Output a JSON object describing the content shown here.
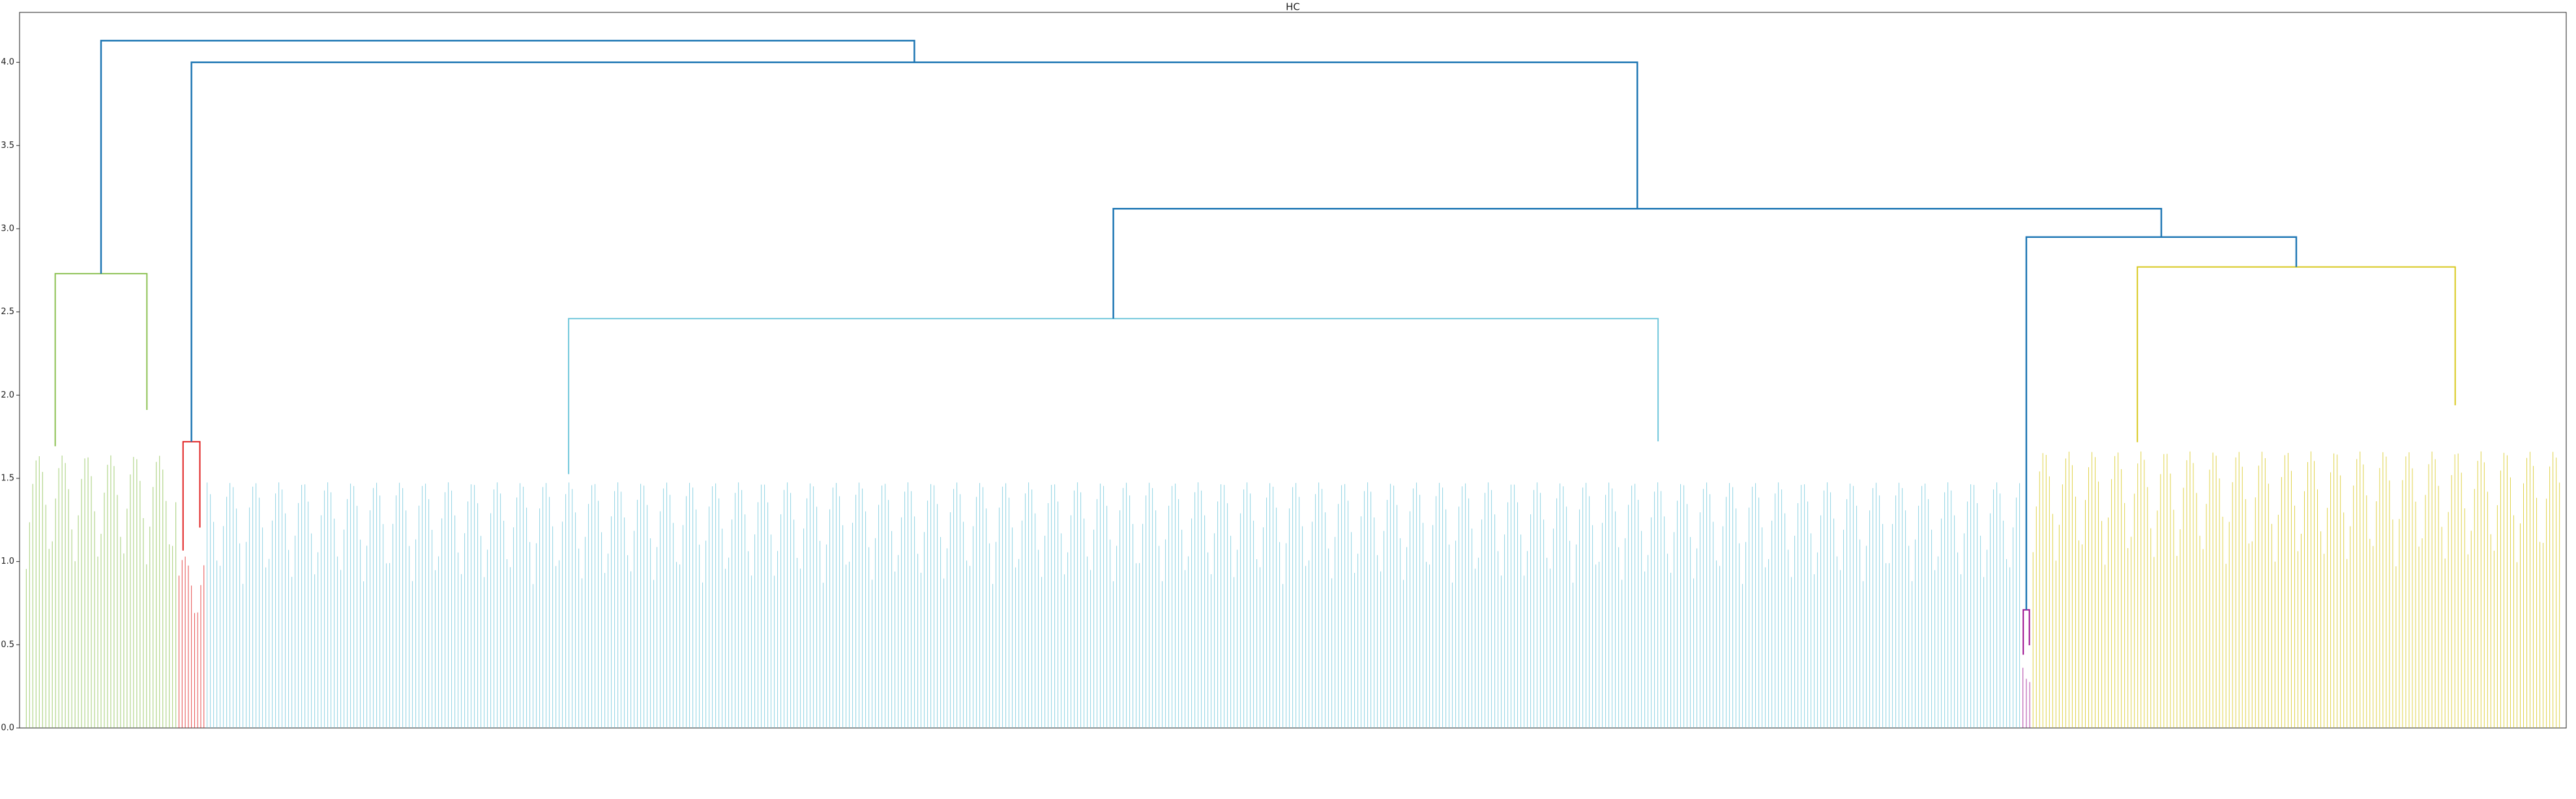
{
  "chart_data": {
    "type": "dendrogram",
    "title": "HC",
    "ylim": [
      0,
      4.3
    ],
    "yticks": [
      {
        "value": 0,
        "label": "0.0"
      },
      0.5,
      {
        "value": 1,
        "label": "1.0"
      },
      1.5,
      {
        "value": 2,
        "label": "2.0"
      },
      2.5,
      {
        "value": 3,
        "label": "3.0"
      },
      3.5,
      {
        "value": 4,
        "label": "4.0"
      }
    ],
    "clusters": [
      {
        "color": "#8cc152",
        "height": 2.73
      },
      {
        "color": "#e02020",
        "height": 1.72
      },
      {
        "color": "#72c8dc",
        "height": 2.46
      },
      {
        "color": "#9b0e8e",
        "height": 0.71
      },
      {
        "color": "#d8c81c",
        "height": 2.77
      }
    ],
    "link_color": "#1f77b4",
    "links": [
      {
        "height": 4.13
      },
      {
        "height": 4.0
      },
      {
        "height": 3.12
      },
      {
        "height": 2.95
      }
    ]
  }
}
